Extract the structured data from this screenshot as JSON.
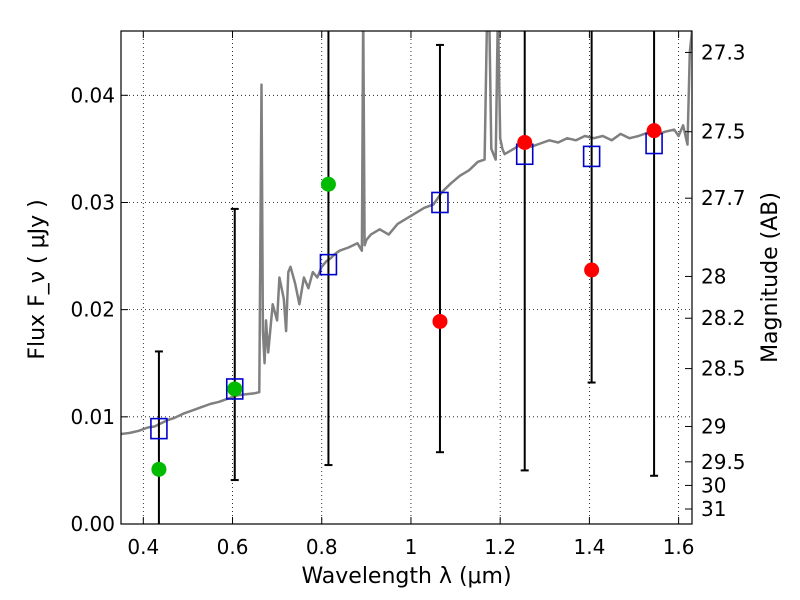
{
  "chart_data": {
    "type": "scatter",
    "xlabel": "Wavelength  λ (μm)",
    "ylabel": "Flux  F_ν  ( μJy )",
    "ylabel_right": "Magnitude (AB)",
    "xlim": [
      0.35,
      1.63
    ],
    "ylim": [
      0.0,
      0.046
    ],
    "grid": true,
    "x_ticks": [
      0.4,
      0.6,
      0.8,
      1.0,
      1.2,
      1.4,
      1.6
    ],
    "x_tick_labels": [
      "0.4",
      "0.6",
      "0.8",
      "1",
      "1.2",
      "1.4",
      "1.6"
    ],
    "y_ticks": [
      0.0,
      0.01,
      0.02,
      0.03,
      0.04
    ],
    "y_tick_labels": [
      "0.00",
      "0.01",
      "0.02",
      "0.03",
      "0.04"
    ],
    "right_ticks": [
      {
        "label": "27.3",
        "flux": 0.044
      },
      {
        "label": "27.5",
        "flux": 0.0366
      },
      {
        "label": "27.7",
        "flux": 0.0304
      },
      {
        "label": "28",
        "flux": 0.0231
      },
      {
        "label": "28.2",
        "flux": 0.0192
      },
      {
        "label": "28.5",
        "flux": 0.0145
      },
      {
        "label": "29",
        "flux": 0.0091
      },
      {
        "label": "29.5",
        "flux": 0.0058
      },
      {
        "label": "30",
        "flux": 0.0036
      },
      {
        "label": "31",
        "flux": 0.0014
      }
    ],
    "series": [
      {
        "color": "#00bb00",
        "marker": "circle",
        "points": [
          {
            "x": 0.435,
            "y": 0.0051,
            "err_low": 0.0051,
            "err_high": 0.011
          },
          {
            "x": 0.605,
            "y": 0.0126,
            "err_low": 0.0085,
            "err_high": 0.0168
          },
          {
            "x": 0.815,
            "y": 0.0317,
            "err_low": 0.0262,
            "err_high": 0.0371
          }
        ]
      },
      {
        "color": "#ff0000",
        "marker": "circle",
        "points": [
          {
            "x": 1.065,
            "y": 0.0189,
            "err_low": 0.0122,
            "err_high": 0.0258
          },
          {
            "x": 1.255,
            "y": 0.0356,
            "err_low": 0.0306,
            "err_high": 0.0407
          },
          {
            "x": 1.405,
            "y": 0.0237,
            "err_low": 0.0105,
            "err_high": 0.037
          },
          {
            "x": 1.545,
            "y": 0.0367,
            "err_low": 0.0322,
            "err_high": 0.0413
          }
        ]
      },
      {
        "color": "#0000cc",
        "marker": "open-square",
        "points": [
          {
            "x": 0.435,
            "y": 0.0089
          },
          {
            "x": 0.605,
            "y": 0.0126
          },
          {
            "x": 0.815,
            "y": 0.0242
          },
          {
            "x": 1.065,
            "y": 0.03
          },
          {
            "x": 1.255,
            "y": 0.0345
          },
          {
            "x": 1.405,
            "y": 0.0343
          },
          {
            "x": 1.545,
            "y": 0.0355
          }
        ]
      }
    ],
    "spectrum": {
      "color": "#808080",
      "x": [
        0.35,
        0.37,
        0.39,
        0.41,
        0.425,
        0.44,
        0.455,
        0.47,
        0.49,
        0.51,
        0.53,
        0.55,
        0.57,
        0.59,
        0.61,
        0.63,
        0.65,
        0.66,
        0.665,
        0.668,
        0.672,
        0.675,
        0.68,
        0.69,
        0.7,
        0.705,
        0.715,
        0.72,
        0.725,
        0.73,
        0.74,
        0.75,
        0.76,
        0.77,
        0.78,
        0.79,
        0.8,
        0.81,
        0.82,
        0.83,
        0.84,
        0.86,
        0.88,
        0.89,
        0.893,
        0.896,
        0.9,
        0.91,
        0.93,
        0.95,
        0.97,
        0.99,
        1.01,
        1.03,
        1.05,
        1.07,
        1.09,
        1.11,
        1.13,
        1.15,
        1.165,
        1.17,
        1.175,
        1.18,
        1.19,
        1.195,
        1.2,
        1.205,
        1.21,
        1.23,
        1.25,
        1.27,
        1.29,
        1.31,
        1.33,
        1.35,
        1.37,
        1.39,
        1.41,
        1.43,
        1.45,
        1.47,
        1.49,
        1.51,
        1.53,
        1.55,
        1.57,
        1.59,
        1.6,
        1.61,
        1.62,
        1.625,
        1.63
      ],
      "y": [
        0.0084,
        0.0085,
        0.0087,
        0.009,
        0.0091,
        0.0094,
        0.0097,
        0.0099,
        0.0103,
        0.0106,
        0.0109,
        0.0112,
        0.0114,
        0.0117,
        0.012,
        0.0121,
        0.0122,
        0.0123,
        0.041,
        0.018,
        0.015,
        0.019,
        0.016,
        0.0205,
        0.019,
        0.023,
        0.021,
        0.018,
        0.0235,
        0.024,
        0.0225,
        0.0205,
        0.023,
        0.022,
        0.0235,
        0.023,
        0.024,
        0.0245,
        0.0248,
        0.0252,
        0.0255,
        0.0258,
        0.0262,
        0.0255,
        0.048,
        0.026,
        0.0265,
        0.027,
        0.0275,
        0.027,
        0.028,
        0.0285,
        0.029,
        0.0295,
        0.0298,
        0.031,
        0.0318,
        0.0325,
        0.033,
        0.0338,
        0.034,
        0.046,
        0.049,
        0.035,
        0.034,
        0.048,
        0.036,
        0.035,
        0.0345,
        0.035,
        0.0355,
        0.0352,
        0.0355,
        0.0358,
        0.0356,
        0.036,
        0.0358,
        0.0362,
        0.036,
        0.0362,
        0.0358,
        0.0364,
        0.036,
        0.0362,
        0.0365,
        0.0363,
        0.0366,
        0.0368,
        0.0362,
        0.0372,
        0.0354,
        0.044,
        0.046
      ]
    }
  }
}
